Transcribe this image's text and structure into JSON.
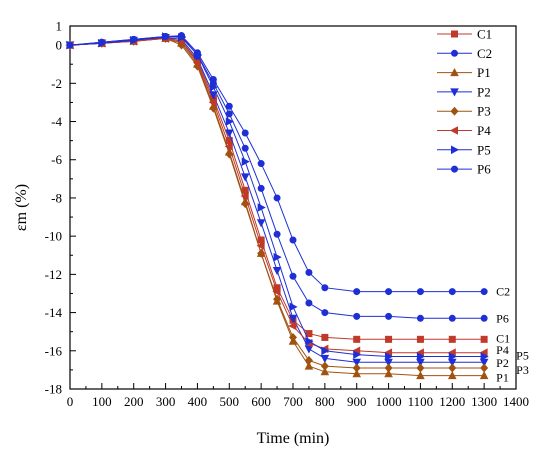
{
  "chart_data": {
    "type": "line",
    "title": "",
    "xlabel": "Time (min)",
    "ylabel": "εm (%)",
    "xlim": [
      0,
      1400
    ],
    "ylim": [
      -18,
      1
    ],
    "x_ticks": [
      0,
      100,
      200,
      300,
      400,
      500,
      600,
      700,
      800,
      900,
      1000,
      1100,
      1200,
      1300,
      1400
    ],
    "y_ticks": [
      0,
      -2,
      -4,
      -6,
      -8,
      -10,
      -12,
      -14,
      -16,
      -18
    ],
    "y_tick_labels": [
      "0",
      "-2",
      "-4",
      "-6",
      "-8",
      "-10",
      "-12",
      "-14",
      "-16",
      "-18"
    ],
    "y_top_label": "1",
    "grid": false,
    "legend_position": "top-right",
    "series": [
      {
        "name": "C1",
        "color": "#c0392b",
        "marker": "square",
        "points": [
          [
            0,
            0
          ],
          [
            100,
            0.1
          ],
          [
            200,
            0.25
          ],
          [
            300,
            0.4
          ],
          [
            350,
            0.2
          ],
          [
            400,
            -0.8
          ],
          [
            450,
            -2.8
          ],
          [
            500,
            -5.0
          ],
          [
            550,
            -7.6
          ],
          [
            600,
            -10.2
          ],
          [
            650,
            -12.7
          ],
          [
            700,
            -14.4
          ],
          [
            750,
            -15.1
          ],
          [
            800,
            -15.3
          ],
          [
            900,
            -15.4
          ],
          [
            1000,
            -15.4
          ],
          [
            1100,
            -15.4
          ],
          [
            1200,
            -15.4
          ],
          [
            1300,
            -15.4
          ]
        ]
      },
      {
        "name": "C2",
        "color": "#1f2fd6",
        "marker": "circle",
        "points": [
          [
            0,
            0
          ],
          [
            100,
            0.15
          ],
          [
            200,
            0.3
          ],
          [
            300,
            0.45
          ],
          [
            350,
            0.5
          ],
          [
            400,
            -0.4
          ],
          [
            450,
            -1.8
          ],
          [
            500,
            -3.2
          ],
          [
            550,
            -4.6
          ],
          [
            600,
            -6.2
          ],
          [
            650,
            -8.0
          ],
          [
            700,
            -10.2
          ],
          [
            750,
            -11.9
          ],
          [
            800,
            -12.7
          ],
          [
            900,
            -12.9
          ],
          [
            1000,
            -12.9
          ],
          [
            1100,
            -12.9
          ],
          [
            1200,
            -12.9
          ],
          [
            1300,
            -12.9
          ]
        ]
      },
      {
        "name": "P1",
        "color": "#a0520f",
        "marker": "triangle-up",
        "points": [
          [
            0,
            0
          ],
          [
            100,
            0.1
          ],
          [
            200,
            0.2
          ],
          [
            300,
            0.35
          ],
          [
            350,
            0.1
          ],
          [
            400,
            -1.0
          ],
          [
            450,
            -3.2
          ],
          [
            500,
            -5.6
          ],
          [
            550,
            -8.2
          ],
          [
            600,
            -10.9
          ],
          [
            650,
            -13.4
          ],
          [
            700,
            -15.5
          ],
          [
            750,
            -16.8
          ],
          [
            800,
            -17.1
          ],
          [
            900,
            -17.2
          ],
          [
            1000,
            -17.2
          ],
          [
            1100,
            -17.3
          ],
          [
            1200,
            -17.3
          ],
          [
            1300,
            -17.3
          ]
        ]
      },
      {
        "name": "P2",
        "color": "#1f2fd6",
        "marker": "triangle-down",
        "points": [
          [
            0,
            0
          ],
          [
            100,
            0.1
          ],
          [
            200,
            0.25
          ],
          [
            300,
            0.4
          ],
          [
            350,
            0.3
          ],
          [
            400,
            -0.7
          ],
          [
            450,
            -2.6
          ],
          [
            500,
            -4.6
          ],
          [
            550,
            -6.9
          ],
          [
            600,
            -9.3
          ],
          [
            650,
            -11.8
          ],
          [
            700,
            -14.3
          ],
          [
            750,
            -15.9
          ],
          [
            800,
            -16.4
          ],
          [
            900,
            -16.6
          ],
          [
            1000,
            -16.6
          ],
          [
            1100,
            -16.6
          ],
          [
            1200,
            -16.6
          ],
          [
            1300,
            -16.6
          ]
        ]
      },
      {
        "name": "P3",
        "color": "#a0520f",
        "marker": "diamond",
        "points": [
          [
            0,
            0
          ],
          [
            100,
            0.1
          ],
          [
            200,
            0.2
          ],
          [
            300,
            0.35
          ],
          [
            350,
            0.0
          ],
          [
            400,
            -1.1
          ],
          [
            450,
            -3.3
          ],
          [
            500,
            -5.7
          ],
          [
            550,
            -8.3
          ],
          [
            600,
            -10.9
          ],
          [
            650,
            -13.3
          ],
          [
            700,
            -15.3
          ],
          [
            750,
            -16.5
          ],
          [
            800,
            -16.8
          ],
          [
            900,
            -16.9
          ],
          [
            1000,
            -16.9
          ],
          [
            1100,
            -16.9
          ],
          [
            1200,
            -16.9
          ],
          [
            1300,
            -16.9
          ]
        ]
      },
      {
        "name": "P4",
        "color": "#c0392b",
        "marker": "triangle-left",
        "points": [
          [
            0,
            0
          ],
          [
            100,
            0.1
          ],
          [
            200,
            0.2
          ],
          [
            300,
            0.35
          ],
          [
            350,
            0.2
          ],
          [
            400,
            -0.9
          ],
          [
            450,
            -3.0
          ],
          [
            500,
            -5.3
          ],
          [
            550,
            -7.9
          ],
          [
            600,
            -10.5
          ],
          [
            650,
            -12.9
          ],
          [
            700,
            -14.7
          ],
          [
            750,
            -15.6
          ],
          [
            800,
            -15.9
          ],
          [
            900,
            -16.0
          ],
          [
            1000,
            -16.1
          ],
          [
            1100,
            -16.1
          ],
          [
            1200,
            -16.1
          ],
          [
            1300,
            -16.1
          ]
        ]
      },
      {
        "name": "P5",
        "color": "#1f2fd6",
        "marker": "triangle-right",
        "points": [
          [
            0,
            0
          ],
          [
            100,
            0.1
          ],
          [
            200,
            0.25
          ],
          [
            300,
            0.45
          ],
          [
            350,
            0.4
          ],
          [
            400,
            -0.5
          ],
          [
            450,
            -2.2
          ],
          [
            500,
            -4.0
          ],
          [
            550,
            -6.1
          ],
          [
            600,
            -8.5
          ],
          [
            650,
            -11.1
          ],
          [
            700,
            -13.7
          ],
          [
            750,
            -15.5
          ],
          [
            800,
            -16.0
          ],
          [
            900,
            -16.2
          ],
          [
            1000,
            -16.3
          ],
          [
            1100,
            -16.3
          ],
          [
            1200,
            -16.3
          ],
          [
            1300,
            -16.3
          ]
        ]
      },
      {
        "name": "P6",
        "color": "#1f2fd6",
        "marker": "circle",
        "points": [
          [
            0,
            0
          ],
          [
            100,
            0.15
          ],
          [
            200,
            0.3
          ],
          [
            300,
            0.45
          ],
          [
            350,
            0.45
          ],
          [
            400,
            -0.5
          ],
          [
            450,
            -2.0
          ],
          [
            500,
            -3.6
          ],
          [
            550,
            -5.4
          ],
          [
            600,
            -7.5
          ],
          [
            650,
            -9.9
          ],
          [
            700,
            -12.1
          ],
          [
            750,
            -13.5
          ],
          [
            800,
            -14.0
          ],
          [
            900,
            -14.2
          ],
          [
            1000,
            -14.2
          ],
          [
            1100,
            -14.3
          ],
          [
            1200,
            -14.3
          ],
          [
            1300,
            -14.3
          ]
        ]
      }
    ],
    "end_labels": [
      {
        "text": "C2",
        "y": -12.9
      },
      {
        "text": "P6",
        "y": -14.3
      },
      {
        "text": "C1",
        "y": -15.3
      },
      {
        "text": "P4",
        "y": -16.0
      },
      {
        "text": "P5",
        "y": -16.25
      },
      {
        "text": "P2",
        "y": -16.6
      },
      {
        "text": "P3",
        "y": -16.95
      },
      {
        "text": "P1",
        "y": -17.35
      }
    ]
  }
}
